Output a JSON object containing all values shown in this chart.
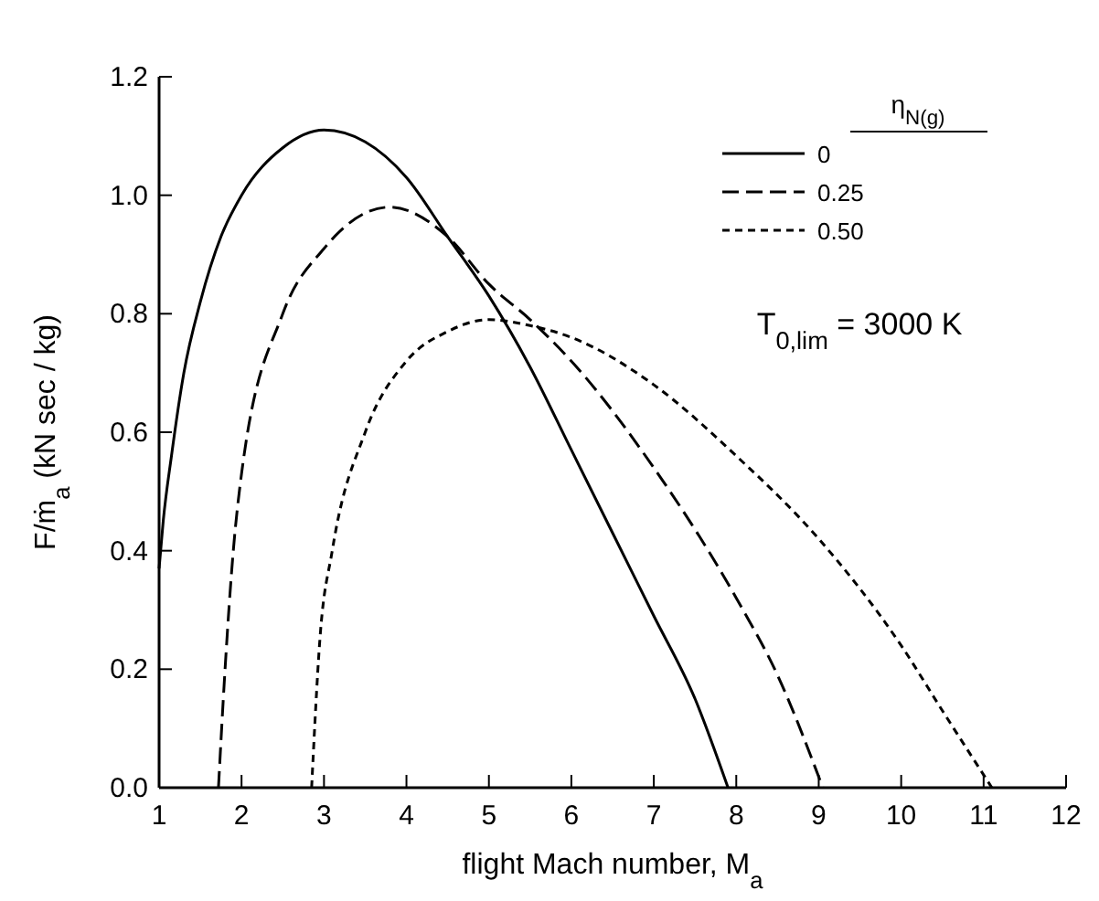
{
  "chart_data": {
    "type": "line",
    "xlabel": "flight Mach number, M$_{a}$",
    "ylabel": "F/ṁ$_{a}$ (kN sec / kg)",
    "legend_title": "η$_{N(g)}$",
    "legend": "top right",
    "grid": false,
    "xlim": [
      1,
      12
    ],
    "xticks": [
      1,
      2,
      3,
      4,
      5,
      6,
      7,
      8,
      9,
      10,
      11,
      12
    ],
    "ylim": [
      0,
      1.2
    ],
    "yticks": [
      {
        "value": 0,
        "label": "0.0"
      },
      {
        "value": 0.2,
        "label": "0.2"
      },
      {
        "value": 0.4,
        "label": "0.4"
      },
      {
        "value": 0.6,
        "label": "0.6"
      },
      {
        "value": 0.8,
        "label": "0.8"
      },
      {
        "value": 1,
        "label": "1.0"
      },
      {
        "value": 1.2,
        "label": "1.2"
      }
    ],
    "annotations": [
      "T$_{0,lim}$ = 3000 K"
    ],
    "series": [
      {
        "name": "0",
        "color": "#000000",
        "line_style": "solid",
        "x": [
          1,
          1.05,
          1.15,
          1.3,
          1.5,
          1.75,
          2,
          2.5,
          3,
          3.5,
          4,
          4.5,
          5,
          5.5,
          6,
          6.5,
          7,
          7.5,
          7.9
        ],
        "values": [
          0.37,
          0.45,
          0.56,
          0.7,
          0.82,
          0.93,
          1.0,
          1.08,
          1.11,
          1.09,
          1.03,
          0.93,
          0.83,
          0.71,
          0.57,
          0.43,
          0.29,
          0.15,
          0
        ]
      },
      {
        "name": "0.25",
        "color": "#000000",
        "line_style": "dashed",
        "x": [
          1.72,
          1.8,
          1.9,
          2,
          2.5,
          3,
          3.5,
          3.8,
          4.5,
          5,
          5.5,
          6,
          7,
          8,
          8.5,
          9.05
        ],
        "values": [
          0,
          0.2,
          0.4,
          0.53,
          0.8,
          0.91,
          0.97,
          0.98,
          0.93,
          0.85,
          0.79,
          0.72,
          0.54,
          0.32,
          0.19,
          0
        ]
      },
      {
        "name": "0.50",
        "color": "#000000",
        "line_style": "dotted",
        "x": [
          2.85,
          2.95,
          3.1,
          3.5,
          4,
          4.5,
          5,
          5.5,
          6,
          7,
          8,
          9,
          10,
          10.5,
          11.1
        ],
        "values": [
          0,
          0.25,
          0.4,
          0.6,
          0.72,
          0.77,
          0.79,
          0.78,
          0.76,
          0.68,
          0.56,
          0.42,
          0.24,
          0.13,
          0
        ]
      }
    ]
  }
}
